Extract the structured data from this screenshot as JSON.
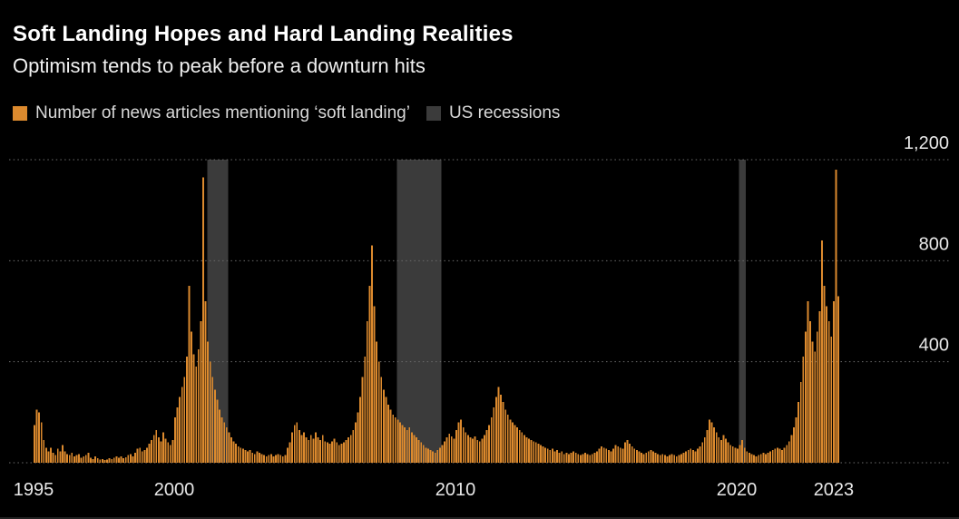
{
  "page": {
    "background": "#000000"
  },
  "chart_data": {
    "type": "bar",
    "title": "Soft Landing Hopes and Hard Landing Realities",
    "subtitle": "Optimism tends to peak before a downturn hits",
    "legend": [
      {
        "label": "Number of news articles mentioning ‘soft landing’",
        "color": "#DC8A2E",
        "kind": "series-swatch"
      },
      {
        "label": "US recessions",
        "color": "#3B3B3B",
        "kind": "band-swatch"
      }
    ],
    "xlabel": "",
    "ylabel": "",
    "ylim": [
      0,
      1200
    ],
    "grid": "horizontal-dotted",
    "legend_position": "top-left",
    "frequency": "monthly",
    "x_range": [
      1995.0,
      2023.667
    ],
    "yticks": [
      {
        "value": 0,
        "label": ""
      },
      {
        "value": 400,
        "label": "400"
      },
      {
        "value": 800,
        "label": "800"
      },
      {
        "value": 1200,
        "label": "1,200"
      }
    ],
    "xticks": [
      {
        "label": "1995",
        "value": 1995
      },
      {
        "label": "2000",
        "value": 2000
      },
      {
        "label": "2010",
        "value": 2010
      },
      {
        "label": "2020",
        "value": 2020
      },
      {
        "label": "2023",
        "value": 2023,
        "pos": 2023.45
      }
    ],
    "recessions": [
      {
        "start": 2001.17,
        "end": 2001.92
      },
      {
        "start": 2007.92,
        "end": 2009.5
      },
      {
        "start": 2020.08,
        "end": 2020.33
      }
    ],
    "series": [
      {
        "name": "Number of news articles mentioning ‘soft landing’",
        "color": "#DC8A2E",
        "start_year": 1995,
        "values_by_year": {
          "1995": [
            150,
            210,
            200,
            160,
            90,
            60,
            45,
            60,
            40,
            30,
            55,
            45
          ],
          "1996": [
            70,
            45,
            35,
            30,
            40,
            25,
            30,
            35,
            20,
            25,
            30,
            40
          ],
          "1997": [
            20,
            15,
            25,
            18,
            12,
            15,
            10,
            12,
            18,
            15,
            20,
            25
          ],
          "1998": [
            20,
            25,
            18,
            22,
            30,
            35,
            25,
            40,
            55,
            60,
            45,
            50
          ],
          "1999": [
            60,
            75,
            90,
            110,
            130,
            100,
            85,
            120,
            95,
            80,
            70,
            90
          ],
          "2000": [
            180,
            220,
            260,
            300,
            340,
            420,
            700,
            520,
            430,
            380,
            450,
            560
          ],
          "2001": [
            1130,
            640,
            480,
            400,
            340,
            290,
            250,
            210,
            180,
            160,
            140,
            120
          ],
          "2002": [
            100,
            85,
            75,
            65,
            60,
            55,
            50,
            45,
            50,
            40,
            35,
            45
          ],
          "2003": [
            40,
            35,
            30,
            25,
            30,
            35,
            25,
            30,
            35,
            30,
            25,
            30
          ],
          "2004": [
            60,
            80,
            120,
            150,
            160,
            130,
            110,
            120,
            100,
            90,
            110,
            95
          ],
          "2005": [
            120,
            100,
            90,
            110,
            85,
            80,
            75,
            85,
            95,
            80,
            70,
            75
          ],
          "2006": [
            80,
            90,
            100,
            110,
            130,
            160,
            200,
            260,
            340,
            420,
            560,
            700
          ],
          "2007": [
            860,
            620,
            480,
            400,
            340,
            290,
            260,
            230,
            210,
            190,
            180,
            170
          ],
          "2008": [
            160,
            150,
            140,
            130,
            140,
            120,
            110,
            100,
            90,
            80,
            70,
            60
          ],
          "2009": [
            55,
            50,
            45,
            40,
            50,
            60,
            70,
            85,
            100,
            115,
            105,
            95
          ],
          "2010": [
            130,
            160,
            170,
            140,
            120,
            110,
            100,
            95,
            105,
            90,
            85,
            95
          ],
          "2011": [
            110,
            130,
            150,
            180,
            220,
            260,
            300,
            270,
            240,
            210,
            190,
            170
          ],
          "2012": [
            160,
            150,
            140,
            130,
            120,
            110,
            100,
            95,
            90,
            85,
            80,
            75
          ],
          "2013": [
            70,
            65,
            60,
            55,
            50,
            55,
            45,
            50,
            40,
            45,
            35,
            40
          ],
          "2014": [
            35,
            40,
            45,
            40,
            35,
            30,
            35,
            40,
            35,
            30,
            35,
            40
          ],
          "2015": [
            45,
            55,
            65,
            60,
            55,
            50,
            45,
            55,
            70,
            65,
            60,
            55
          ],
          "2016": [
            80,
            90,
            75,
            65,
            55,
            50,
            45,
            40,
            35,
            40,
            45,
            50
          ],
          "2017": [
            45,
            40,
            35,
            30,
            35,
            30,
            25,
            30,
            35,
            30,
            25,
            30
          ],
          "2018": [
            35,
            40,
            45,
            50,
            55,
            50,
            45,
            55,
            65,
            80,
            100,
            130
          ],
          "2019": [
            170,
            160,
            140,
            120,
            100,
            90,
            110,
            95,
            80,
            70,
            65,
            60
          ],
          "2020": [
            55,
            70,
            90,
            60,
            45,
            40,
            35,
            30,
            25,
            30,
            35,
            40
          ],
          "2021": [
            35,
            40,
            45,
            50,
            55,
            60,
            55,
            50,
            60,
            70,
            85,
            110
          ],
          "2022": [
            140,
            180,
            240,
            320,
            420,
            520,
            640,
            560,
            480,
            440,
            520,
            600
          ],
          "2023": [
            880,
            700,
            620,
            560,
            500,
            640,
            1160,
            660
          ]
        }
      }
    ]
  }
}
